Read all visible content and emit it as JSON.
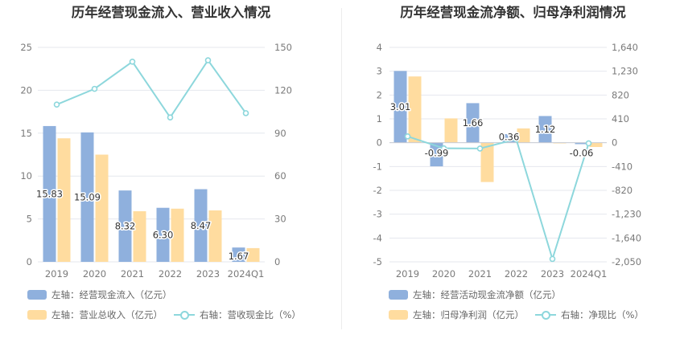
{
  "colors": {
    "bar_a": "#8fb0dd",
    "bar_b": "#ffdc9f",
    "line": "#8dd7dc",
    "grid": "#e4e7ee",
    "axis_text": "#7a7a7a",
    "label_text": "#333333"
  },
  "chart_data": [
    {
      "type": "bar",
      "title": "历年经营现金流入、营业收入情况",
      "categories": [
        "2019",
        "2020",
        "2021",
        "2022",
        "2023",
        "2024Q1"
      ],
      "series": [
        {
          "name": "左轴：经营现金流入（亿元）",
          "axis": "left",
          "kind": "bar",
          "values": [
            15.83,
            15.09,
            8.32,
            6.3,
            8.47,
            1.67
          ],
          "labels": [
            "15.83",
            "15.09",
            "8.32",
            "6.30",
            "8.47",
            "1.67"
          ]
        },
        {
          "name": "左轴：营业总收入（亿元）",
          "axis": "left",
          "kind": "bar",
          "values": [
            14.4,
            12.5,
            5.9,
            6.2,
            6.0,
            1.6
          ]
        },
        {
          "name": "右轴：营收现金比（%）",
          "axis": "right",
          "kind": "line",
          "values": [
            110,
            121,
            140,
            101,
            141,
            104
          ]
        }
      ],
      "left_axis": {
        "ylim": [
          0,
          25
        ],
        "ticks": [
          "0",
          "5",
          "10",
          "15",
          "20",
          "25"
        ]
      },
      "right_axis": {
        "ylim": [
          0,
          150
        ],
        "ticks": [
          "0",
          "30",
          "60",
          "90",
          "120",
          "150"
        ]
      },
      "grid": true,
      "legend_position": "bottom"
    },
    {
      "type": "bar",
      "title": "历年经营现金流净额、归母净利润情况",
      "categories": [
        "2019",
        "2020",
        "2021",
        "2022",
        "2023",
        "2024Q1"
      ],
      "series": [
        {
          "name": "左轴：经营活动现金流净额（亿元）",
          "axis": "left",
          "kind": "bar",
          "values": [
            3.01,
            -0.99,
            1.66,
            0.36,
            1.12,
            -0.06
          ],
          "labels": [
            "3.01",
            "-0.99",
            "1.66",
            "0.36",
            "1.12",
            "-0.06"
          ]
        },
        {
          "name": "左轴：归母净利润（亿元）",
          "axis": "left",
          "kind": "bar",
          "values": [
            2.78,
            1.02,
            -1.65,
            0.6,
            -0.03,
            -0.18
          ]
        },
        {
          "name": "右轴：净现比（%）",
          "axis": "right",
          "kind": "line",
          "values": [
            108,
            -97,
            -100,
            60,
            -2000,
            -10
          ]
        }
      ],
      "left_axis": {
        "ylim": [
          -5,
          4
        ],
        "ticks": [
          "-5",
          "-4",
          "-3",
          "-2",
          "-1",
          "0",
          "1",
          "2",
          "3",
          "4"
        ]
      },
      "right_axis": {
        "ylim": [
          -2050,
          1640
        ],
        "ticks": [
          "-2,050",
          "-1,640",
          "-1,230",
          "-820",
          "-410",
          "0",
          "410",
          "820",
          "1,230",
          "1,640"
        ]
      },
      "grid": true,
      "legend_position": "bottom"
    }
  ]
}
